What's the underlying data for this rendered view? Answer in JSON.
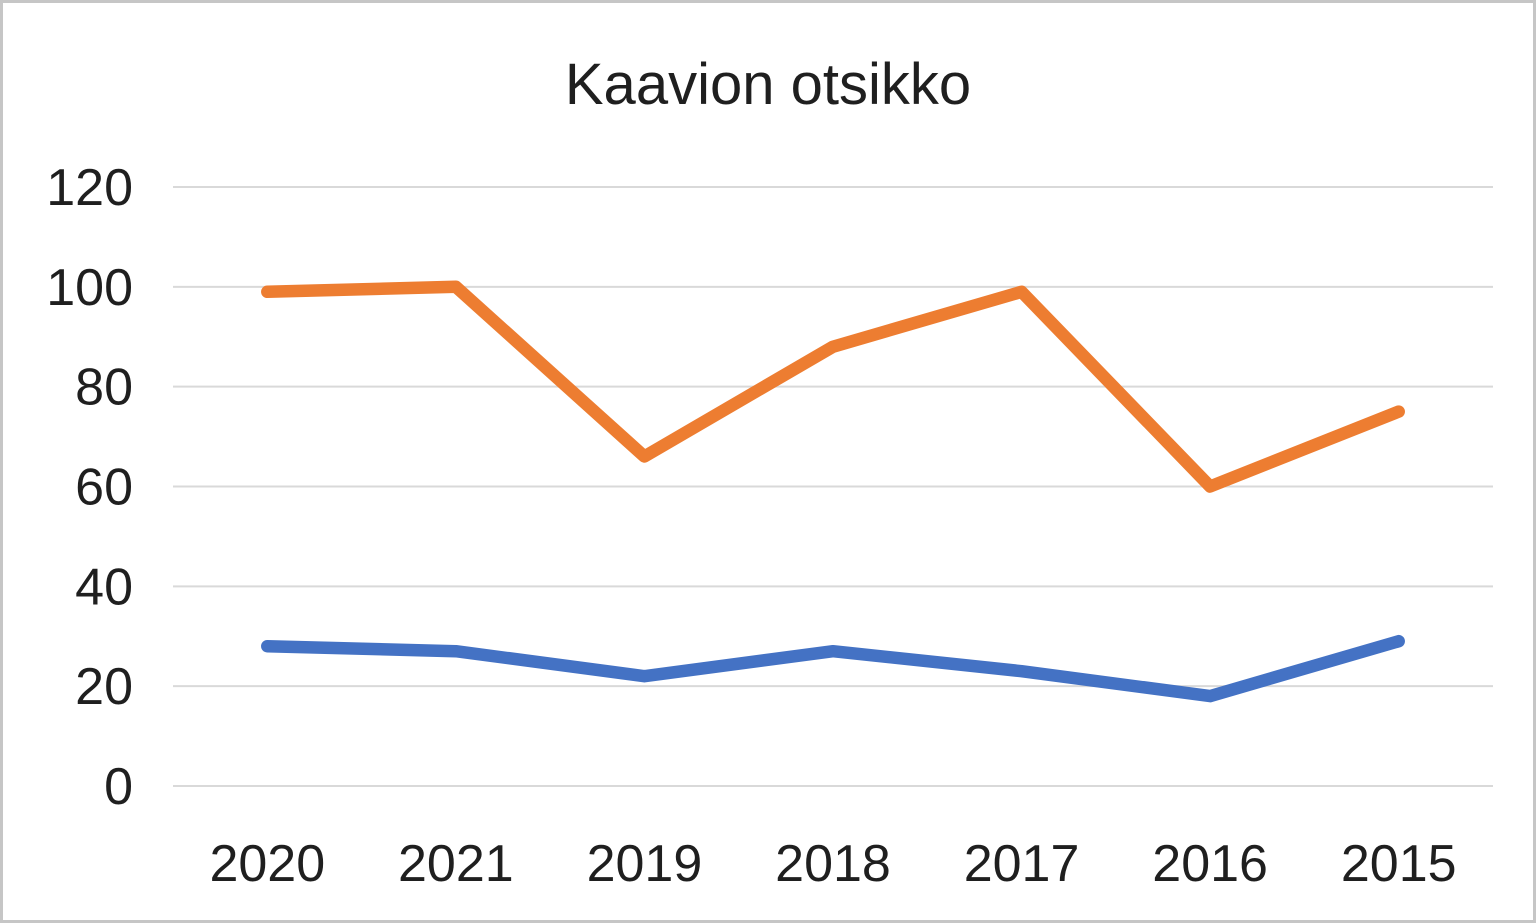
{
  "chart_data": {
    "type": "line",
    "title": "Kaavion otsikko",
    "categories": [
      "2020",
      "2021",
      "2019",
      "2018",
      "2017",
      "2016",
      "2015"
    ],
    "series": [
      {
        "color": "#4472C4",
        "values": [
          28,
          27,
          22,
          27,
          23,
          18,
          29
        ]
      },
      {
        "color": "#ED7D31",
        "values": [
          99,
          100,
          66,
          88,
          99,
          60,
          75
        ]
      }
    ],
    "xlabel": "",
    "ylabel": "",
    "ylim": [
      0,
      120
    ],
    "yticks": [
      0,
      20,
      40,
      60,
      80,
      100,
      120
    ],
    "grid": true,
    "legend": "none",
    "colors": {
      "gridline": "#D9D9D9",
      "text": "#1F1F1F",
      "background": "#FFFFFF",
      "frame_border": "#C6C6C6"
    }
  }
}
